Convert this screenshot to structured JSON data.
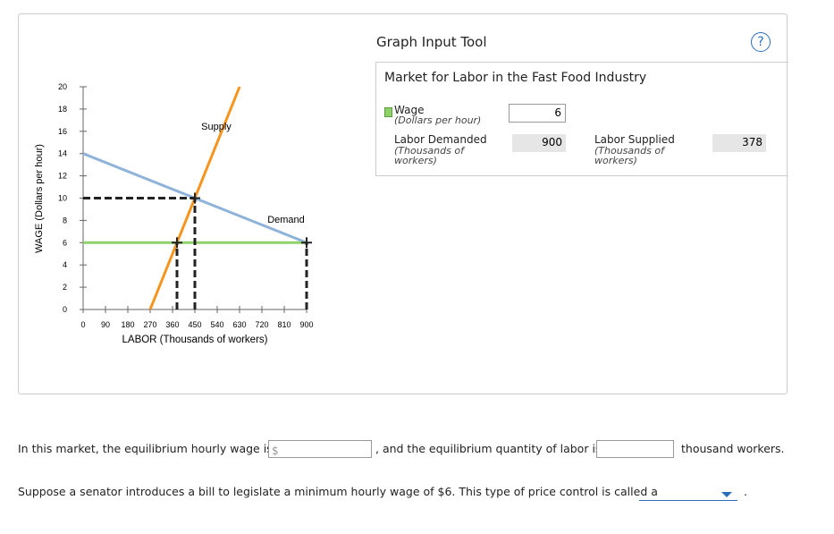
{
  "chart_data": {
    "type": "line",
    "ylabel": "WAGE (Dollars per hour)",
    "xlabel": "LABOR (Thousands of workers)",
    "xlim": [
      0,
      900
    ],
    "ylim": [
      0,
      20
    ],
    "xticks": [
      0,
      90,
      180,
      270,
      360,
      450,
      540,
      630,
      720,
      810,
      900
    ],
    "yticks": [
      0,
      2,
      4,
      6,
      8,
      10,
      12,
      14,
      16,
      18,
      20
    ],
    "series": [
      {
        "name": "Supply",
        "color": "#f7941d",
        "x": [
          270,
          630
        ],
        "values": [
          0,
          20
        ]
      },
      {
        "name": "Demand",
        "color": "#8fb3d9",
        "x": [
          0,
          900
        ],
        "values": [
          14,
          6
        ]
      },
      {
        "color": "#8fd16a",
        "x": [
          0,
          900
        ],
        "values": [
          6,
          6
        ]
      }
    ],
    "guides": [
      {
        "x": [
          0,
          450
        ],
        "values": [
          10,
          10
        ]
      },
      {
        "x": [
          450,
          450
        ],
        "values": [
          0,
          10
        ]
      },
      {
        "x": [
          378,
          378
        ],
        "values": [
          0,
          6
        ]
      },
      {
        "x": [
          900,
          900
        ],
        "values": [
          0,
          6
        ]
      }
    ],
    "points": {
      "x": [
        450,
        378,
        900
      ],
      "values": [
        10,
        6,
        6
      ]
    }
  },
  "tool": {
    "title": "Graph Input Tool",
    "help": "?",
    "subtitle": "Market for Labor in the Fast Food Industry",
    "wage": {
      "label": "Wage",
      "unit": "(Dollars per hour)",
      "value": 6
    },
    "demanded": {
      "label": "Labor Demanded",
      "unit": "(Thousands of workers)",
      "value": 900
    },
    "supplied": {
      "label": "Labor Supplied",
      "unit": "(Thousands of workers)",
      "value": 378
    }
  },
  "question": {
    "q1_start": "In this market, the equilibrium hourly wage is",
    "currency": "$",
    "q1_middle": ", and the equilibrium quantity of labor is",
    "q1_end": "thousand workers.",
    "q2": "Suppose a senator introduces a bill to legislate a minimum hourly wage of $6. This type of price control is called a",
    "q2_end": "."
  }
}
